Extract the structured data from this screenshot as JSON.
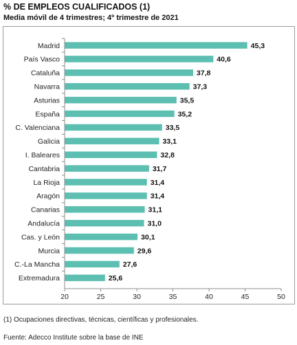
{
  "header": {
    "title": "% DE EMPLEOS CUALIFICADOS (1)",
    "subtitle": "Media móvil de 4 trimestres; 4º trimestre de 2021"
  },
  "notes": {
    "footnote": "(1) Ocupaciones directivas, técnicas, científicas y profesionales.",
    "source": "Fuente: Adecco Institute sobre la base de INE"
  },
  "colors": {
    "bar": "#5cbfb1",
    "axis": "#8c8c8c"
  },
  "chart_data": {
    "type": "bar",
    "orientation": "horizontal",
    "title": "% DE EMPLEOS CUALIFICADOS (1)",
    "subtitle": "Media móvil de 4 trimestres; 4º trimestre de 2021",
    "categories": [
      "Madrid",
      "País Vasco",
      "Cataluña",
      "Navarra",
      "Asturias",
      "España",
      "C. Valenciana",
      "Galicia",
      "I. Baleares",
      "Cantabria",
      "La Rioja",
      "Aragón",
      "Canarias",
      "Andalucía",
      "Cas. y León",
      "Murcia",
      "C.-La Mancha",
      "Extremadura"
    ],
    "values": [
      45.3,
      40.6,
      37.8,
      37.3,
      35.5,
      35.2,
      33.5,
      33.1,
      32.8,
      31.7,
      31.4,
      31.4,
      31.1,
      31.0,
      30.1,
      29.6,
      27.6,
      25.6
    ],
    "value_labels": [
      "45,3",
      "40,6",
      "37,8",
      "37,3",
      "35,5",
      "35,2",
      "33,5",
      "33,1",
      "32,8",
      "31,7",
      "31,4",
      "31,4",
      "31,1",
      "31,0",
      "30,1",
      "29,6",
      "27,6",
      "25,6"
    ],
    "xlim": [
      20,
      50
    ],
    "xticks": [
      20,
      25,
      30,
      35,
      40,
      45,
      50
    ],
    "xtick_labels": [
      "20",
      "25",
      "30",
      "35",
      "40",
      "45",
      "50"
    ],
    "grid": false,
    "legend": "none"
  }
}
